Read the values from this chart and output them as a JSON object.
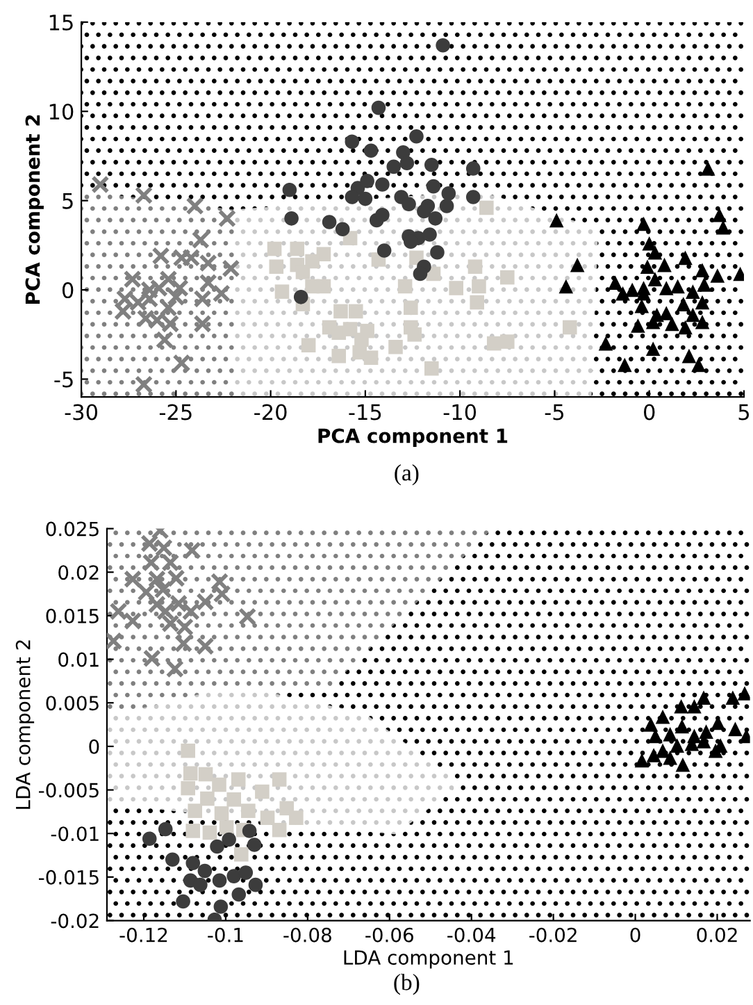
{
  "chart_data": [
    {
      "type": "scatter",
      "xlabel": "PCA component 1",
      "ylabel": "PCA component 2",
      "xlim": [
        -30,
        5
      ],
      "ylim": [
        -6,
        15
      ],
      "xticks": [
        -30,
        -25,
        -20,
        -15,
        -10,
        -5,
        0,
        5
      ],
      "yticks": [
        -5,
        0,
        5,
        10,
        15
      ],
      "grid": false,
      "legend": false,
      "annotations": [
        "(a)"
      ],
      "series": [
        {
          "color": "#808080",
          "marker": "cross",
          "x": [
            -29.0,
            -26.7,
            -24.0,
            -22.3,
            -23.7,
            -25.8,
            -24.7,
            -24.2,
            -23.3,
            -22.1,
            -27.3,
            -25.4,
            -25.9,
            -26.4,
            -24.8,
            -23.3,
            -22.6,
            -27.7,
            -27.0,
            -23.6,
            -27.8,
            -25.4,
            -26.6,
            -26.0,
            -25.3,
            -23.6,
            -25.6,
            -24.7,
            -26.7,
            -26.4,
            -25.0
          ],
          "values": [
            5.9,
            5.3,
            4.7,
            4.0,
            2.8,
            1.9,
            1.8,
            1.8,
            1.5,
            1.2,
            0.6,
            0.6,
            0.1,
            0.0,
            0.1,
            0.4,
            -0.2,
            -0.5,
            -0.7,
            -0.5,
            -1.2,
            -1.0,
            -1.6,
            -1.7,
            -1.9,
            -1.9,
            -2.8,
            -4.1,
            -5.3,
            -0.5,
            -0.4
          ]
        },
        {
          "color": "#d3cfc7",
          "marker": "square",
          "x": [
            -8.6,
            -15.8,
            -19.8,
            -18.6,
            -17.2,
            -14.3,
            -12.3,
            -19.7,
            -18.6,
            -17.8,
            -18.3,
            -9.2,
            -11.4,
            -7.5,
            -19.4,
            -17.8,
            -17.2,
            -12.9,
            -10.2,
            -9.0,
            -18.3,
            -9.1,
            -12.6,
            -16.3,
            -15.5,
            -16.9,
            -16.4,
            -15.8,
            -14.9,
            -15.2,
            -12.6,
            -12.4,
            -4.2,
            -8.2,
            -7.5,
            -18.0,
            -13.4,
            -16.4,
            -15.3,
            -14.7,
            -11.5
          ],
          "values": [
            4.6,
            2.9,
            2.3,
            2.3,
            2.0,
            1.7,
            1.8,
            1.3,
            1.4,
            1.6,
            1.0,
            1.3,
            0.9,
            0.7,
            -0.1,
            0.2,
            0.2,
            0.2,
            0.1,
            0.2,
            -0.8,
            -0.7,
            -1.0,
            -1.2,
            -1.2,
            -2.1,
            -2.4,
            -2.2,
            -2.3,
            -2.8,
            -2.1,
            -2.5,
            -2.1,
            -3.0,
            -2.9,
            -3.1,
            -3.2,
            -3.7,
            -3.5,
            -3.8,
            -4.4
          ]
        },
        {
          "color": "#3c3c3c",
          "marker": "circle",
          "x": [
            -10.9,
            -14.3,
            -15.7,
            -14.7,
            -12.3,
            -13.0,
            -13.5,
            -12.8,
            -11.5,
            -9.3,
            -19.0,
            -15.4,
            -14.9,
            -14.1,
            -15.7,
            -15.0,
            -13.1,
            -12.7,
            -11.7,
            -11.4,
            -10.6,
            -10.7,
            -9.3,
            -18.9,
            -16.9,
            -16.2,
            -14.4,
            -14.1,
            -11.9,
            -11.3,
            -12.7,
            -12.2,
            -11.6,
            -12.6,
            -14.0,
            -11.2,
            -11.9,
            -12.1,
            -18.4
          ],
          "values": [
            13.7,
            10.2,
            8.3,
            7.8,
            8.6,
            7.7,
            6.9,
            7.1,
            7.0,
            6.8,
            5.6,
            5.7,
            6.1,
            5.9,
            5.2,
            5.1,
            5.2,
            4.8,
            4.7,
            5.8,
            5.4,
            4.7,
            5.2,
            4.0,
            3.8,
            3.4,
            3.9,
            4.2,
            4.4,
            4.0,
            3.0,
            2.9,
            3.1,
            2.7,
            2.2,
            2.1,
            1.3,
            0.9,
            -0.4
          ]
        },
        {
          "color": "#000000",
          "marker": "triangle",
          "x": [
            3.1,
            -4.9,
            -0.3,
            3.7,
            3.9,
            -3.8,
            0.0,
            0.3,
            0.8,
            1.9,
            -0.1,
            2.8,
            3.6,
            4.8,
            -4.4,
            -1.8,
            -0.9,
            -0.3,
            0.3,
            0.9,
            1.5,
            2.3,
            2.9,
            -0.3,
            -1.4,
            -0.4,
            0.4,
            0.9,
            1.8,
            2.8,
            -0.6,
            0.2,
            1.2,
            1.9,
            2.3,
            2.8,
            -2.3,
            0.2,
            -1.3,
            2.1,
            2.6
          ],
          "values": [
            6.8,
            3.9,
            3.7,
            4.2,
            3.5,
            1.4,
            2.6,
            2.1,
            1.4,
            1.8,
            1.3,
            1.1,
            0.8,
            0.9,
            0.2,
            0.4,
            0.0,
            0.1,
            0.6,
            0.1,
            0.2,
            -0.1,
            0.3,
            -0.2,
            -0.2,
            -0.9,
            -1.4,
            -1.3,
            -0.8,
            -0.7,
            -2.0,
            -1.8,
            -1.9,
            -2.1,
            -1.4,
            -1.8,
            -3.0,
            -3.3,
            -4.2,
            -3.7,
            -4.2
          ]
        }
      ]
    },
    {
      "type": "scatter",
      "xlabel": "LDA component 1",
      "ylabel": "LDA component 2",
      "xlim": [
        -0.129,
        0.028
      ],
      "ylim": [
        -0.02,
        0.025
      ],
      "xticks": [
        -0.12,
        -0.1,
        -0.08,
        -0.06,
        -0.04,
        -0.02,
        0,
        0.02
      ],
      "yticks": [
        -0.02,
        -0.015,
        -0.01,
        -0.005,
        0,
        0.005,
        0.01,
        0.015,
        0.02,
        0.025
      ],
      "grid": false,
      "legend": false,
      "annotations": [
        "(b)"
      ],
      "series": [
        {
          "color": "#808080",
          "marker": "cross",
          "x": [
            -0.116,
            -0.1186,
            -0.1151,
            -0.1082,
            -0.1182,
            -0.1135,
            -0.1227,
            -0.1168,
            -0.1121,
            -0.1015,
            -0.1194,
            -0.1153,
            -0.1009,
            -0.105,
            -0.1168,
            -0.1115,
            -0.1262,
            -0.1147,
            -0.1085,
            -0.1227,
            -0.1135,
            -0.11,
            -0.0947,
            -0.1274,
            -0.1103,
            -0.105,
            -0.118,
            -0.1124
          ],
          "values": [
            0.0248,
            0.0233,
            0.0228,
            0.0225,
            0.0211,
            0.0211,
            0.0192,
            0.0192,
            0.0193,
            0.0189,
            0.0177,
            0.018,
            0.0175,
            0.0166,
            0.0163,
            0.0164,
            0.0155,
            0.0155,
            0.0155,
            0.0144,
            0.0141,
            0.0137,
            0.0149,
            0.0121,
            0.0118,
            0.0115,
            0.0101,
            0.0089
          ]
        },
        {
          "color": "#d3cfc7",
          "marker": "square",
          "x": [
            -0.1092,
            -0.1086,
            -0.1049,
            -0.1092,
            -0.1016,
            -0.0969,
            -0.0911,
            -0.0869,
            -0.1045,
            -0.098,
            -0.0851,
            -0.0828,
            -0.1075,
            -0.101,
            -0.0945,
            -0.0898,
            -0.0869,
            -0.108,
            -0.1039,
            -0.0998,
            -0.0957,
            -0.0962
          ],
          "values": [
            -0.0005,
            -0.0031,
            -0.0032,
            -0.0048,
            -0.0044,
            -0.0038,
            -0.0052,
            -0.0038,
            -0.006,
            -0.0061,
            -0.0071,
            -0.0082,
            -0.0074,
            -0.0077,
            -0.0074,
            -0.0082,
            -0.0096,
            -0.0097,
            -0.0099,
            -0.0093,
            -0.0096,
            -0.0124
          ]
        },
        {
          "color": "#3c3c3c",
          "marker": "circle",
          "x": [
            -0.1186,
            -0.1147,
            -0.113,
            -0.093,
            -0.0942,
            -0.108,
            -0.1021,
            -0.0992,
            -0.1086,
            -0.1015,
            -0.098,
            -0.0951,
            -0.0927,
            -0.1051,
            -0.0968,
            -0.1012,
            -0.1104,
            -0.1027,
            -0.1062
          ],
          "values": [
            -0.0106,
            -0.0095,
            -0.013,
            -0.0113,
            -0.0097,
            -0.0134,
            -0.0115,
            -0.0107,
            -0.0154,
            -0.0154,
            -0.0149,
            -0.0145,
            -0.0159,
            -0.0143,
            -0.017,
            -0.0184,
            -0.0178,
            -0.0199,
            -0.0159
          ]
        },
        {
          "color": "#000000",
          "marker": "triangle",
          "x": [
            0.0016,
            0.0038,
            0.0067,
            0.0112,
            0.0144,
            0.0167,
            0.0238,
            0.0267,
            0.0049,
            0.0085,
            0.0114,
            0.0144,
            0.0173,
            0.0202,
            0.0244,
            0.0271,
            0.0067,
            0.0102,
            0.0138,
            0.0167,
            0.0208,
            0.0045,
            0.0085,
            0.0116,
            0.0196
          ],
          "values": [
            -0.0016,
            0.0025,
            0.0034,
            0.0046,
            0.0046,
            0.0056,
            0.0056,
            0.0061,
            0.0012,
            0.0014,
            0.0023,
            0.0012,
            0.0017,
            0.0027,
            0.002,
            0.0012,
            -0.0005,
            0.0001,
            0.0003,
            0.0006,
            0.0001,
            -0.001,
            -0.0013,
            -0.0021,
            -0.0005
          ]
        }
      ]
    }
  ]
}
